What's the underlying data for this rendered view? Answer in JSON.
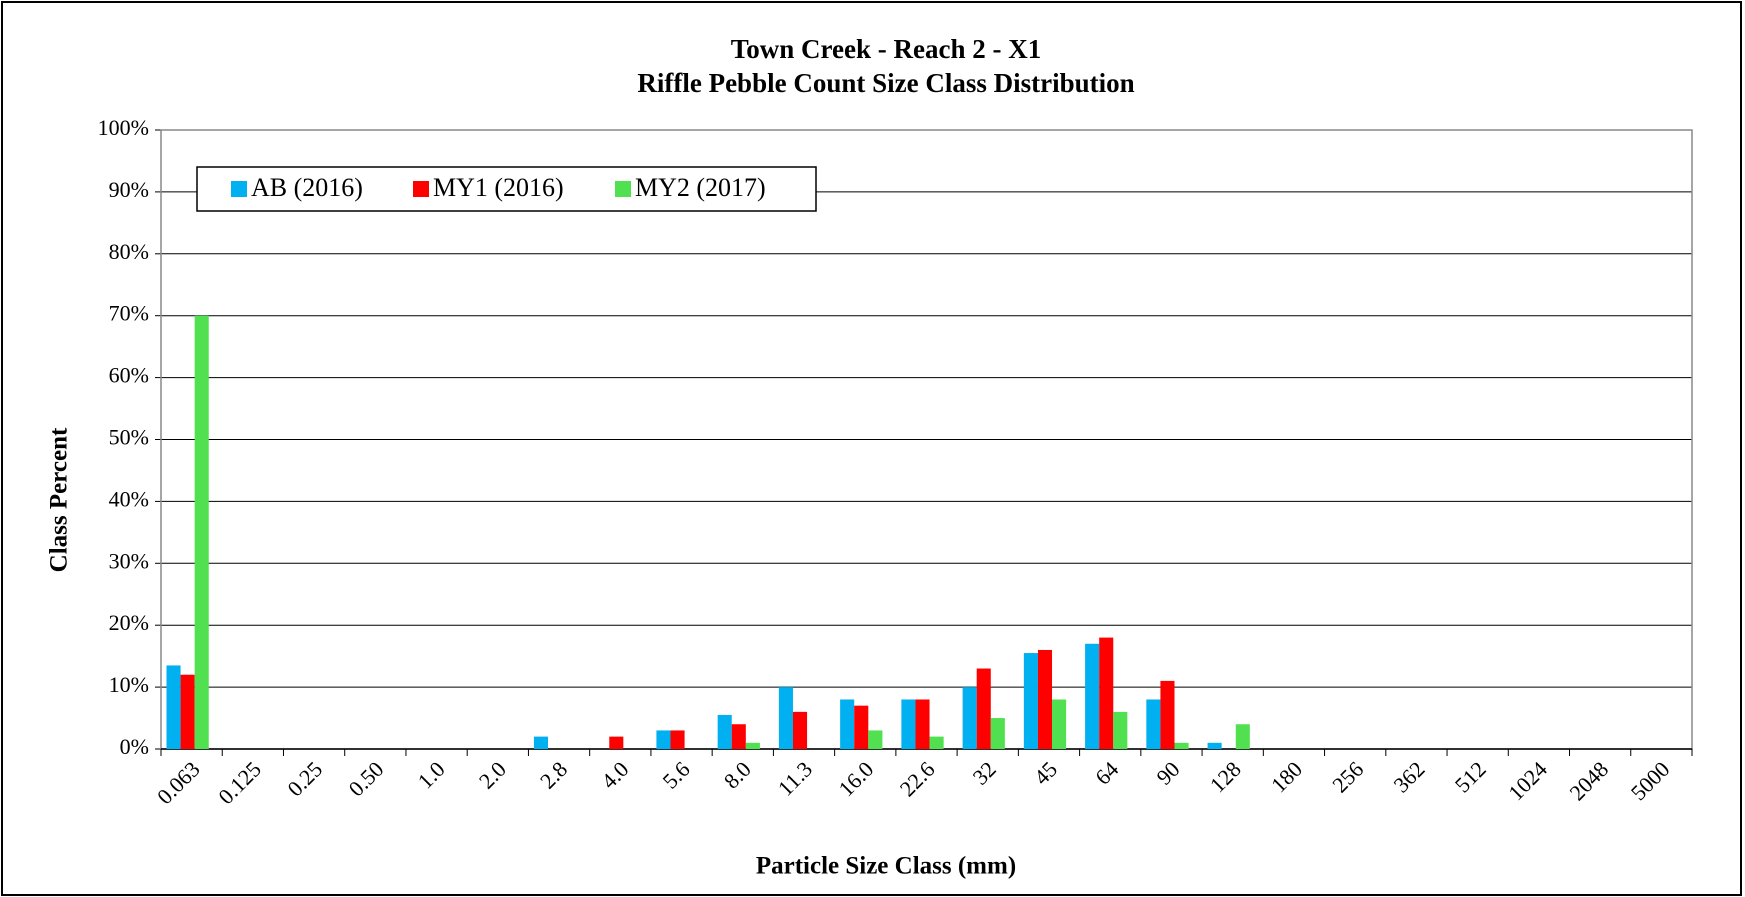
{
  "chart_data": {
    "type": "bar",
    "title": "Town Creek - Reach 2 - X1",
    "subtitle": "Riffle Pebble Count Size Class Distribution",
    "x_label": "Particle Size Class (mm)",
    "y_label": "Class Percent",
    "categories": [
      "0.063",
      "0.125",
      "0.25",
      "0.50",
      "1.0",
      "2.0",
      "2.8",
      "4.0",
      "5.6",
      "8.0",
      "11.3",
      "16.0",
      "22.6",
      "32",
      "45",
      "64",
      "90",
      "128",
      "180",
      "256",
      "362",
      "512",
      "1024",
      "2048",
      "5000"
    ],
    "series": [
      {
        "name": "AB (2016)",
        "color": "#00b0f0",
        "values": [
          13.5,
          0,
          0,
          0,
          0,
          0,
          2,
          0,
          3,
          5.5,
          10,
          8,
          8,
          10,
          15.5,
          17,
          8,
          1,
          0,
          0,
          0,
          0,
          0,
          0,
          0
        ]
      },
      {
        "name": "MY1 (2016)",
        "color": "#ff0000",
        "values": [
          12,
          0,
          0,
          0,
          0,
          0,
          0,
          2,
          3,
          4,
          6,
          7,
          8,
          13,
          16,
          18,
          11,
          0,
          0,
          0,
          0,
          0,
          0,
          0,
          0
        ]
      },
      {
        "name": "MY2 (2017)",
        "color": "#50e050",
        "values": [
          70,
          0,
          0,
          0,
          0,
          0,
          0,
          0,
          0,
          1,
          0,
          3,
          2,
          5,
          8,
          6,
          1,
          4,
          0,
          0,
          0,
          0,
          0,
          0,
          0
        ]
      }
    ],
    "ylim": [
      0,
      100
    ],
    "yticks": [
      {
        "value": 0,
        "label": "0%"
      },
      {
        "value": 10,
        "label": "10%"
      },
      {
        "value": 20,
        "label": "20%"
      },
      {
        "value": 30,
        "label": "30%"
      },
      {
        "value": 40,
        "label": "40%"
      },
      {
        "value": 50,
        "label": "50%"
      },
      {
        "value": 60,
        "label": "60%"
      },
      {
        "value": 70,
        "label": "70%"
      },
      {
        "value": 80,
        "label": "80%"
      },
      {
        "value": 90,
        "label": "90%"
      },
      {
        "value": 100,
        "label": "100%"
      }
    ],
    "grid": true,
    "legend_position": "upper left"
  }
}
